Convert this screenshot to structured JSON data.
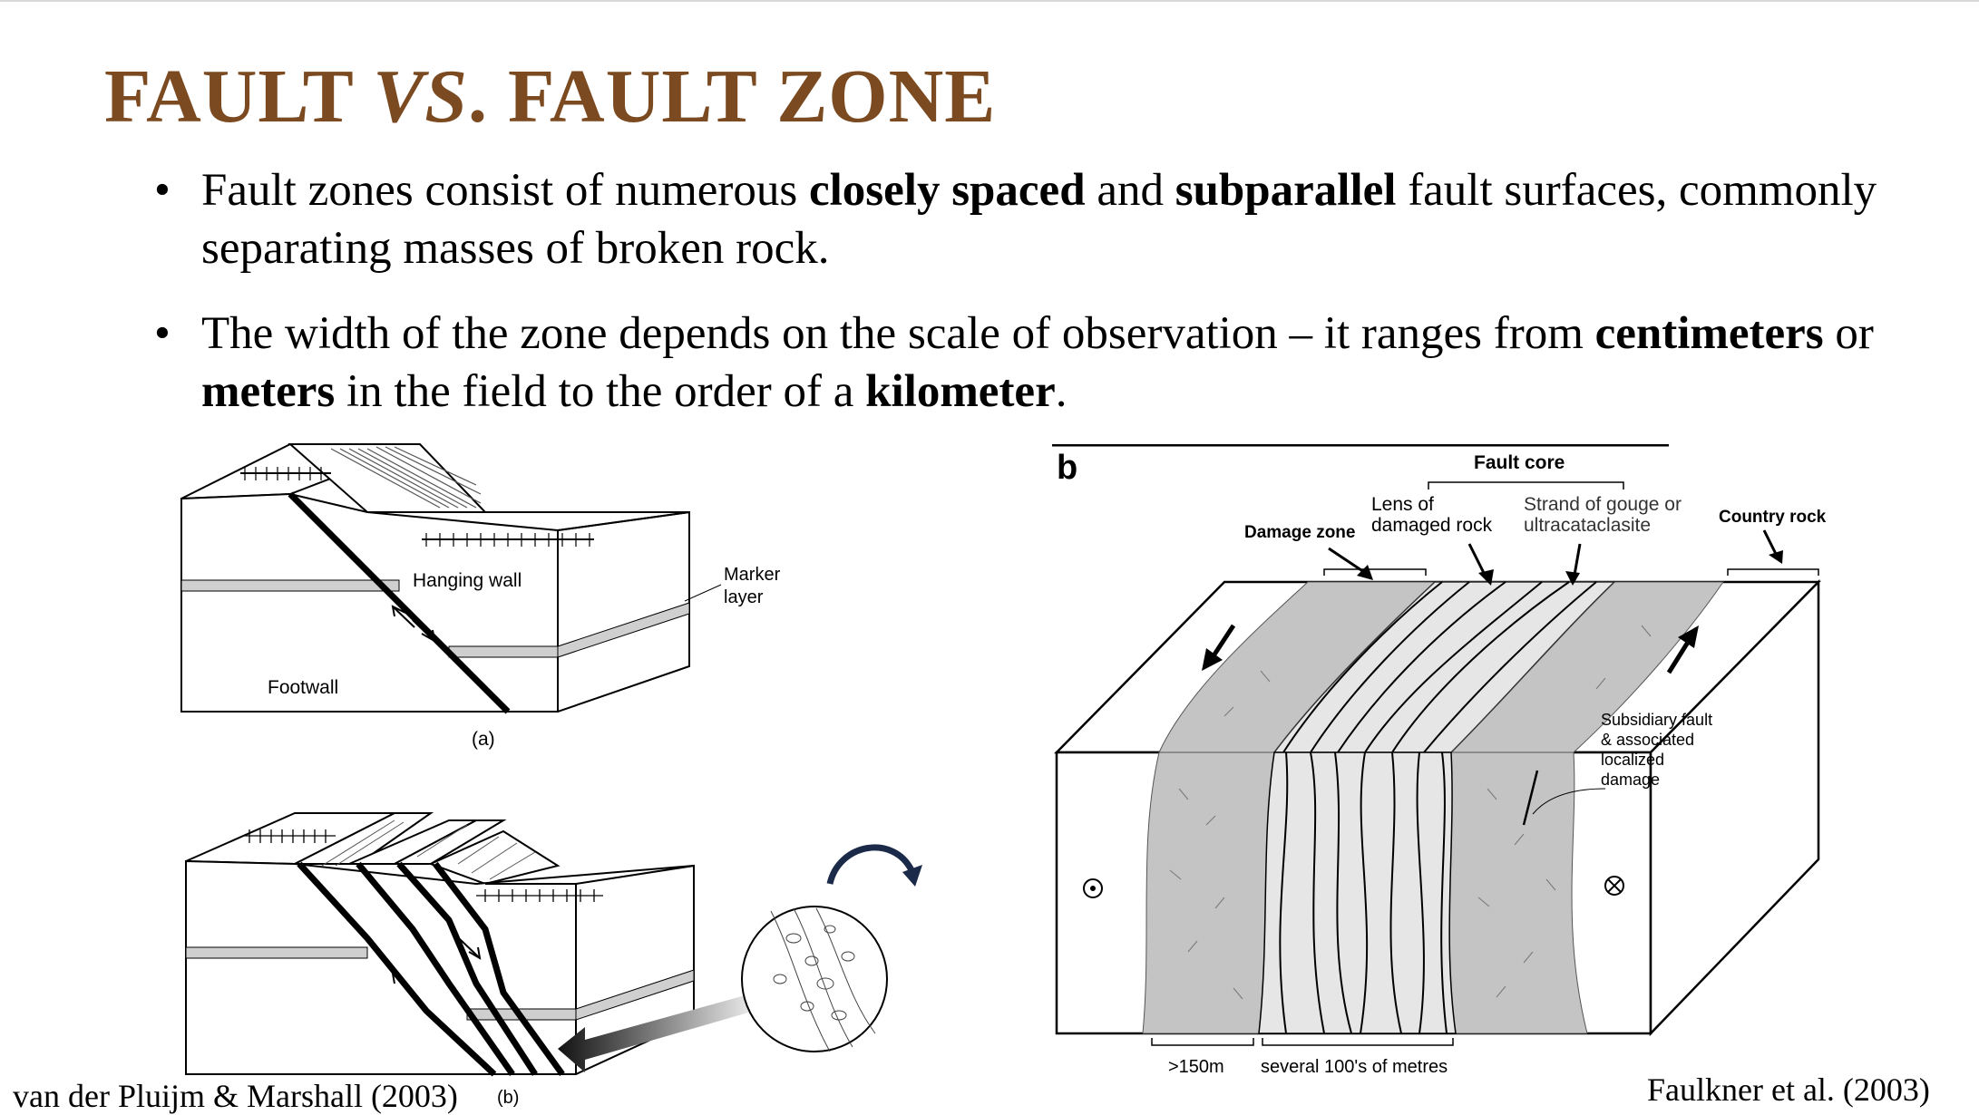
{
  "title": {
    "part1": "FAULT ",
    "vs": "VS",
    "part2": ". FAULT ZONE"
  },
  "bullets": [
    {
      "t1": "Fault zones consist of numerous ",
      "b1": "closely spaced",
      "t2": " and ",
      "b2": "subparallel",
      "t3": " fault surfaces, commonly separating masses of broken rock."
    },
    {
      "t1": "The width of the zone depends on the scale of observation – it ranges from ",
      "b1": "centimeters",
      "t2": " or ",
      "b2": "meters",
      "t3": " in the field to the order of a ",
      "b3": "kilometer",
      "t4": "."
    }
  ],
  "fig_a": {
    "hanging_wall": "Hanging wall",
    "footwall": "Footwall",
    "marker": "Marker",
    "marker2": "layer",
    "caption": "(a)"
  },
  "fig_b_left": {
    "caption": "(b)"
  },
  "fig_b": {
    "panel_letter": "b",
    "fault_core": "Fault core",
    "lens_1": "Lens of",
    "lens_2": "damaged rock",
    "strand_1": "Strand of gouge or",
    "strand_2": "ultracataclasite",
    "damage_zone": "Damage zone",
    "country_rock": "Country rock",
    "subsidiary_1": "Subsidiary fault",
    "subsidiary_2": "& associated",
    "subsidiary_3": "localized",
    "subsidiary_4": "damage",
    "width_left": ">150m",
    "width_core": "several 100's of metres"
  },
  "citations": {
    "left": "van der Pluijm & Marshall (2003)",
    "right": "Faulkner et al. (2003)"
  },
  "colors": {
    "title": "#7b4a20",
    "damage_fill": "#c4c4c4",
    "core_fill": "#e6e6e6",
    "arrow": "#1b2a49"
  }
}
